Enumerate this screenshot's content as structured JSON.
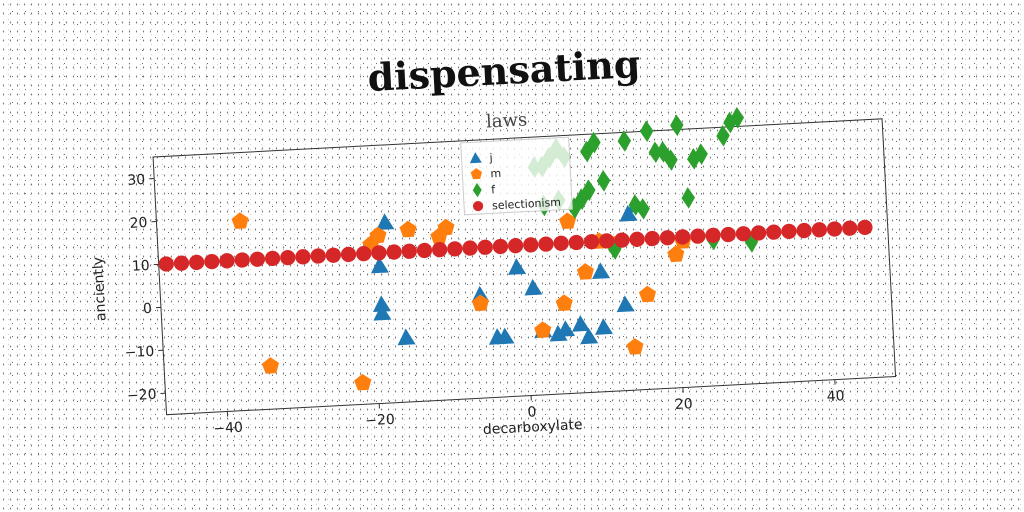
{
  "chart_data": {
    "type": "scatter",
    "title": "dispensating",
    "subtitle": "laws",
    "xlabel": "decarboxylate",
    "ylabel": "anciently",
    "xlim": [
      -48,
      48
    ],
    "ylim": [
      -25,
      35
    ],
    "xticks": [
      -40,
      -20,
      0,
      20,
      40
    ],
    "yticks": [
      -20,
      -10,
      0,
      10,
      20,
      30
    ],
    "legend_position": "top-center",
    "series": [
      {
        "name": "j",
        "marker": "triangle",
        "color": "#1f77b4",
        "points": [
          [
            -18,
            17
          ],
          [
            -19,
            7
          ],
          [
            -19,
            -2
          ],
          [
            -19,
            -4
          ],
          [
            -16,
            -10
          ],
          [
            -6,
            -1
          ],
          [
            -1,
            5
          ],
          [
            1,
            0
          ],
          [
            -4,
            -11
          ],
          [
            -3,
            -11
          ],
          [
            2,
            -10
          ],
          [
            4,
            -11
          ],
          [
            5,
            -10
          ],
          [
            7,
            -9
          ],
          [
            8,
            -12
          ],
          [
            10,
            -10
          ],
          [
            10,
            3
          ],
          [
            13,
            -5
          ],
          [
            14,
            16
          ],
          [
            15,
            18
          ]
        ]
      },
      {
        "name": "m",
        "marker": "pentagon",
        "color": "#ff7f0e",
        "points": [
          [
            -37,
            19
          ],
          [
            -34,
            -15
          ],
          [
            -22,
            -20
          ],
          [
            -20,
            12
          ],
          [
            -19,
            14
          ],
          [
            -15,
            15
          ],
          [
            -11,
            13
          ],
          [
            -10,
            15
          ],
          [
            -6,
            -3
          ],
          [
            2,
            -10
          ],
          [
            5,
            -4
          ],
          [
            6,
            15
          ],
          [
            8,
            3
          ],
          [
            10,
            10
          ],
          [
            12,
            9
          ],
          [
            14,
            -15
          ],
          [
            16,
            -3
          ],
          [
            20,
            6
          ],
          [
            21,
            9
          ]
        ]
      },
      {
        "name": "f",
        "marker": "diamond",
        "color": "#2ca02c",
        "points": [
          [
            2,
            28
          ],
          [
            3,
            28
          ],
          [
            4,
            30
          ],
          [
            5,
            32
          ],
          [
            6,
            30
          ],
          [
            3,
            19
          ],
          [
            5,
            20
          ],
          [
            7,
            18
          ],
          [
            8,
            20
          ],
          [
            9,
            22
          ],
          [
            9,
            31
          ],
          [
            10,
            33
          ],
          [
            11,
            24
          ],
          [
            12,
            8
          ],
          [
            14,
            33
          ],
          [
            15,
            18
          ],
          [
            16,
            17
          ],
          [
            17,
            35
          ],
          [
            18,
            30
          ],
          [
            19,
            30
          ],
          [
            20,
            28
          ],
          [
            21,
            36
          ],
          [
            22,
            19
          ],
          [
            23,
            28
          ],
          [
            24,
            29
          ],
          [
            25,
            9
          ],
          [
            27,
            33
          ],
          [
            28,
            36
          ],
          [
            29,
            37
          ],
          [
            30,
            8
          ]
        ]
      },
      {
        "name": "selectionism",
        "marker": "circle",
        "color": "#d62728",
        "points": [
          [
            -47,
            10
          ],
          [
            -45,
            10
          ],
          [
            -43,
            10
          ],
          [
            -41,
            10
          ],
          [
            -39,
            10
          ],
          [
            -37,
            10
          ],
          [
            -35,
            10
          ],
          [
            -33,
            10
          ],
          [
            -31,
            10
          ],
          [
            -29,
            10
          ],
          [
            -27,
            10
          ],
          [
            -25,
            10
          ],
          [
            -23,
            10
          ],
          [
            -21,
            10
          ],
          [
            -19,
            10
          ],
          [
            -17,
            10
          ],
          [
            -15,
            10
          ],
          [
            -13,
            10
          ],
          [
            -11,
            10
          ],
          [
            -9,
            10
          ],
          [
            -7,
            10
          ],
          [
            -5,
            10
          ],
          [
            -3,
            10
          ],
          [
            -1,
            10
          ],
          [
            1,
            10
          ],
          [
            3,
            10
          ],
          [
            5,
            10
          ],
          [
            7,
            10
          ],
          [
            9,
            10
          ],
          [
            11,
            10
          ],
          [
            13,
            10
          ],
          [
            15,
            10
          ],
          [
            17,
            10
          ],
          [
            19,
            10
          ],
          [
            21,
            10
          ],
          [
            23,
            10
          ],
          [
            25,
            10
          ],
          [
            27,
            10
          ],
          [
            29,
            10
          ],
          [
            31,
            10
          ],
          [
            33,
            10
          ],
          [
            35,
            10
          ],
          [
            37,
            10
          ],
          [
            39,
            10
          ],
          [
            41,
            10
          ],
          [
            43,
            10
          ],
          [
            45,
            10
          ]
        ]
      }
    ]
  }
}
